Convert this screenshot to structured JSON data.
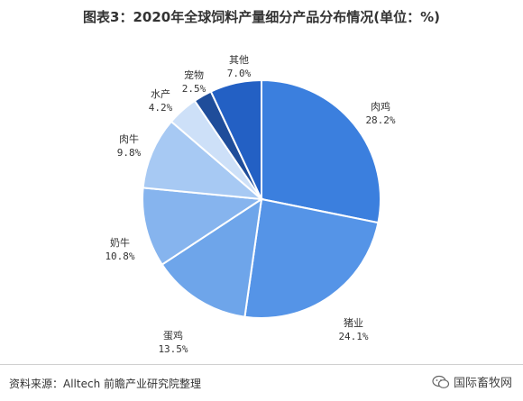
{
  "chart_data": {
    "type": "pie",
    "title": "图表3：2020年全球饲料产量细分产品分布情况(单位：%)",
    "unit": "%",
    "slices": [
      {
        "name": "肉鸡",
        "value": 28.2,
        "label": "28.2%",
        "color": "#3b7fde"
      },
      {
        "name": "猪业",
        "value": 24.1,
        "label": "24.1%",
        "color": "#5594e7"
      },
      {
        "name": "蛋鸡",
        "value": 13.5,
        "label": "13.5%",
        "color": "#6ea5ea"
      },
      {
        "name": "奶牛",
        "value": 10.8,
        "label": "10.8%",
        "color": "#86b4ee"
      },
      {
        "name": "肉牛",
        "value": 9.8,
        "label": "9.8%",
        "color": "#a7c9f3"
      },
      {
        "name": "水产",
        "value": 4.2,
        "label": "4.2%",
        "color": "#cde0f8"
      },
      {
        "name": "宠物",
        "value": 2.5,
        "label": "2.5%",
        "color": "#1f4d9a"
      },
      {
        "name": "其他",
        "value": 7.0,
        "label": "7.0%",
        "color": "#2360c4"
      }
    ]
  },
  "footer": {
    "source": "资料来源：Alltech 前瞻产业研究院整理",
    "wechat": "国际畜牧网"
  }
}
